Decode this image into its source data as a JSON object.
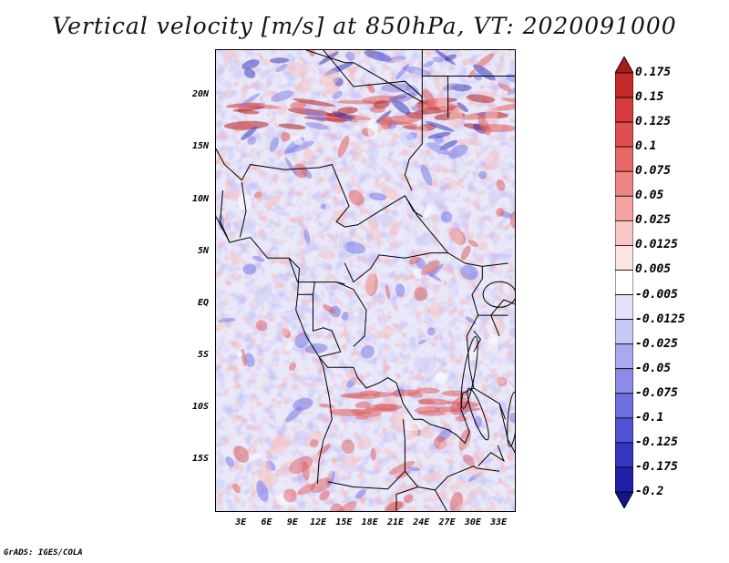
{
  "title": "Vertical velocity [m/s] at 850hPa, VT: 2020091000",
  "footer": "GrADS: IGES/COLA",
  "latitude_labels": [
    "20N",
    "15N",
    "10N",
    "5N",
    "EQ",
    "5S",
    "10S",
    "15S"
  ],
  "longitude_labels": [
    "3E",
    "6E",
    "9E",
    "12E",
    "15E",
    "18E",
    "21E",
    "24E",
    "27E",
    "30E",
    "33E"
  ],
  "colorbar": {
    "labels": [
      "0.175",
      "0.15",
      "0.125",
      "0.1",
      "0.075",
      "0.05",
      "0.025",
      "0.0125",
      "0.005",
      "-0.005",
      "-0.0125",
      "-0.025",
      "-0.05",
      "-0.075",
      "-0.1",
      "-0.125",
      "-0.175",
      "-0.2"
    ],
    "colors": [
      "#a51c1c",
      "#c42a2a",
      "#d63b3b",
      "#e04f4f",
      "#e86868",
      "#ef8585",
      "#f4a3a3",
      "#f9c6c6",
      "#fde4e4",
      "#ffffff",
      "#e2e2fb",
      "#c8c8f5",
      "#a9a9ef",
      "#8c8ce8",
      "#6e6edf",
      "#5151d3",
      "#3535c2",
      "#2020a8",
      "#14148c"
    ]
  },
  "map": {
    "lon_range": [
      0,
      35
    ],
    "lat_range": [
      -20,
      24.5
    ],
    "palette": {
      "red": "#e06060",
      "pink": "#f6c4c4",
      "blue": "#7c7ce8",
      "lightblue": "#cdcdf7",
      "darkblue": "#3030b8",
      "darkred": "#b52020"
    }
  }
}
